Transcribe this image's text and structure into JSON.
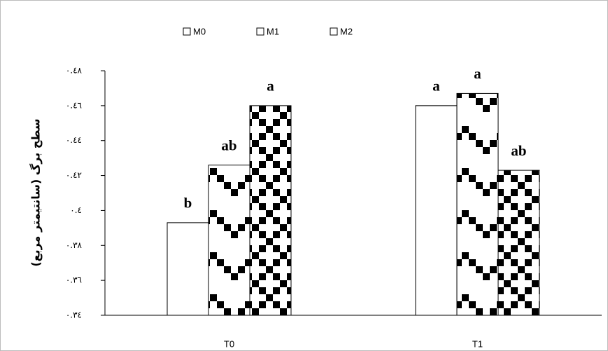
{
  "chart_data": {
    "type": "bar",
    "y_label": "سطح برگ (سانتیمتر مربع)",
    "categories": [
      "T0",
      "T1"
    ],
    "series": [
      {
        "name": "M0",
        "color": "#ffffff",
        "pattern": "none",
        "values": [
          0.393,
          0.46
        ],
        "letters": [
          "b",
          "a"
        ]
      },
      {
        "name": "M1",
        "color": "#000000",
        "pattern": "sparse",
        "values": [
          0.426,
          0.467
        ],
        "letters": [
          "ab",
          "a"
        ]
      },
      {
        "name": "M2",
        "color": "#000000",
        "pattern": "dense",
        "values": [
          0.46,
          0.423
        ],
        "letters": [
          "a",
          "ab"
        ]
      }
    ],
    "ylim": [
      0.34,
      0.48
    ],
    "yticks": [
      {
        "value": 0.34,
        "label": "٠.٣٤"
      },
      {
        "value": 0.36,
        "label": "٠.٣٦"
      },
      {
        "value": 0.38,
        "label": "٠.٣٨"
      },
      {
        "value": 0.4,
        "label": "٠.٤"
      },
      {
        "value": 0.42,
        "label": "٠.٤٢"
      },
      {
        "value": 0.44,
        "label": "٠.٤٤"
      },
      {
        "value": 0.46,
        "label": "٠.٤٦"
      },
      {
        "value": 0.48,
        "label": "٠.٤٨"
      }
    ],
    "legend": "top"
  }
}
